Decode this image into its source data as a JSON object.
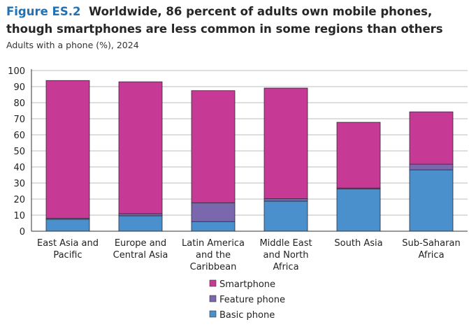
{
  "title": {
    "figure_label": "Figure ES.2",
    "text": "Worldwide, 86 percent of adults own mobile phones, though smartphones are less common in some regions than others"
  },
  "subtitle": "Adults with a phone (%), 2024",
  "colors": {
    "Smartphone": "#c63a96",
    "Feature phone": "#7b67ad",
    "Basic phone": "#4a90cd"
  },
  "chart_data": {
    "type": "bar",
    "stacked": true,
    "title": "Worldwide, 86 percent of adults own mobile phones, though smartphones are less common in some regions than others",
    "ylabel": "Adults with a phone (%), 2024",
    "xlabel": "",
    "ylim": [
      0,
      100
    ],
    "yticks": [
      0,
      10,
      20,
      30,
      40,
      50,
      60,
      70,
      80,
      90,
      100
    ],
    "grid": true,
    "legend_position": "bottom",
    "categories": [
      [
        "East Asia and",
        "Pacific"
      ],
      [
        "Europe and",
        "Central Asia"
      ],
      [
        "Latin America",
        "and the",
        "Caribbean"
      ],
      [
        "Middle East",
        "and North",
        "Africa"
      ],
      [
        "South Asia"
      ],
      [
        "Sub-Saharan",
        "Africa"
      ]
    ],
    "series": [
      {
        "name": "Basic phone",
        "values": [
          7.4,
          9.6,
          6.0,
          18.7,
          26.3,
          38.2
        ]
      },
      {
        "name": "Feature phone",
        "values": [
          0.6,
          1.3,
          11.7,
          1.5,
          0.6,
          3.5
        ]
      },
      {
        "name": "Smartphone",
        "values": [
          85.8,
          82.1,
          69.8,
          68.9,
          40.9,
          32.6
        ]
      }
    ],
    "legend": [
      "Smartphone",
      "Feature phone",
      "Basic phone"
    ]
  }
}
